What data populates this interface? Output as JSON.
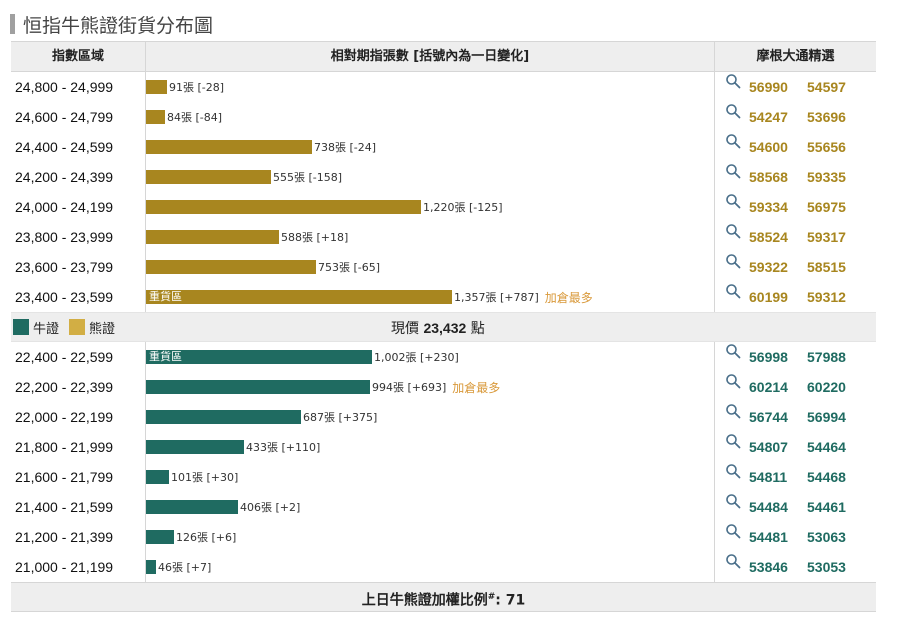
{
  "title": "恒指牛熊證街貨分布圖",
  "header": {
    "range_label": "指數區域",
    "bar_label": "相對期指張數 [括號內為一日變化]",
    "right_label": "摩根大通精選"
  },
  "legend": {
    "bull": "牛證",
    "bear": "熊證"
  },
  "current_price": {
    "prefix": "現價",
    "value": "23,432",
    "suffix": "點"
  },
  "footer": {
    "prefix": "上日牛熊證加權比例",
    "mark": "#",
    "suffix": ": 71"
  },
  "colors": {
    "bear": "#a8861f",
    "bull": "#1f6b61",
    "note": "#d9993a"
  },
  "chart_data": {
    "type": "bar",
    "orientation": "horizontal",
    "max_value": 1357,
    "bear_rows": [
      {
        "range": "24,800 - 24,999",
        "value": 91,
        "label": "91張 [-28]",
        "heavy": "",
        "note": "",
        "codes": [
          "56990",
          "54597"
        ]
      },
      {
        "range": "24,600 - 24,799",
        "value": 84,
        "label": "84張 [-84]",
        "heavy": "",
        "note": "",
        "codes": [
          "54247",
          "53696"
        ]
      },
      {
        "range": "24,400 - 24,599",
        "value": 738,
        "label": "738張 [-24]",
        "heavy": "",
        "note": "",
        "codes": [
          "54600",
          "55656"
        ]
      },
      {
        "range": "24,200 - 24,399",
        "value": 555,
        "label": "555張 [-158]",
        "heavy": "",
        "note": "",
        "codes": [
          "58568",
          "59335"
        ]
      },
      {
        "range": "24,000 - 24,199",
        "value": 1220,
        "label": "1,220張 [-125]",
        "heavy": "",
        "note": "",
        "codes": [
          "59334",
          "56975"
        ]
      },
      {
        "range": "23,800 - 23,999",
        "value": 588,
        "label": "588張 [+18]",
        "heavy": "",
        "note": "",
        "codes": [
          "58524",
          "59317"
        ]
      },
      {
        "range": "23,600 - 23,799",
        "value": 753,
        "label": "753張 [-65]",
        "heavy": "",
        "note": "",
        "codes": [
          "59322",
          "58515"
        ]
      },
      {
        "range": "23,400 - 23,599",
        "value": 1357,
        "label": "1,357張 [+787]",
        "heavy": "重貨區",
        "note": "加倉最多",
        "codes": [
          "60199",
          "59312"
        ]
      }
    ],
    "bull_rows": [
      {
        "range": "22,400 - 22,599",
        "value": 1002,
        "label": "1,002張 [+230]",
        "heavy": "重貨區",
        "note": "",
        "codes": [
          "56998",
          "57988"
        ]
      },
      {
        "range": "22,200 - 22,399",
        "value": 994,
        "label": "994張 [+693]",
        "heavy": "",
        "note": "加倉最多",
        "codes": [
          "60214",
          "60220"
        ]
      },
      {
        "range": "22,000 - 22,199",
        "value": 687,
        "label": "687張 [+375]",
        "heavy": "",
        "note": "",
        "codes": [
          "56744",
          "56994"
        ]
      },
      {
        "range": "21,800 - 21,999",
        "value": 433,
        "label": "433張 [+110]",
        "heavy": "",
        "note": "",
        "codes": [
          "54807",
          "54464"
        ]
      },
      {
        "range": "21,600 - 21,799",
        "value": 101,
        "label": "101張 [+30]",
        "heavy": "",
        "note": "",
        "codes": [
          "54811",
          "54468"
        ]
      },
      {
        "range": "21,400 - 21,599",
        "value": 406,
        "label": "406張 [+2]",
        "heavy": "",
        "note": "",
        "codes": [
          "54484",
          "54461"
        ]
      },
      {
        "range": "21,200 - 21,399",
        "value": 126,
        "label": "126張 [+6]",
        "heavy": "",
        "note": "",
        "codes": [
          "54481",
          "53063"
        ]
      },
      {
        "range": "21,000 - 21,199",
        "value": 46,
        "label": "46張 [+7]",
        "heavy": "",
        "note": "",
        "codes": [
          "53846",
          "53053"
        ]
      }
    ]
  }
}
